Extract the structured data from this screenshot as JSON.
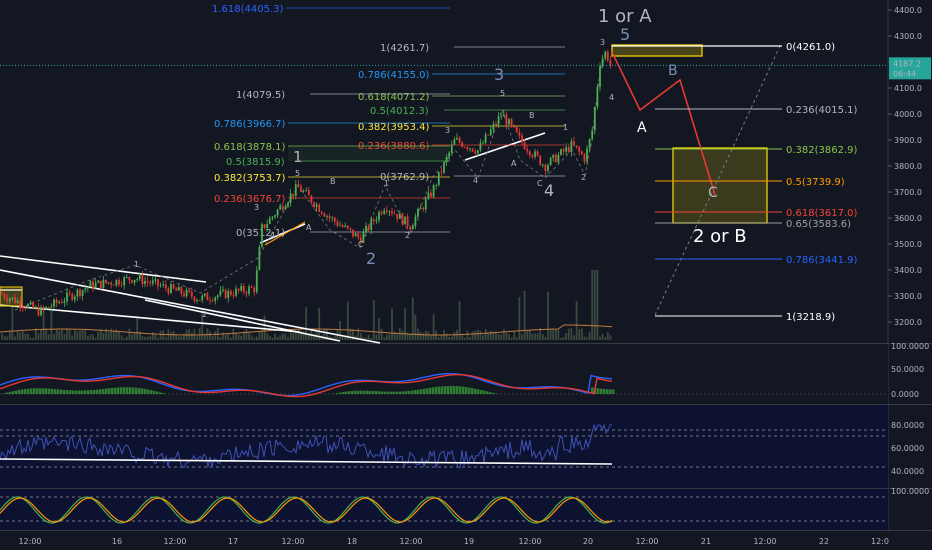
{
  "chart_data": {
    "type": "candlestick",
    "price_axis": {
      "ticks": [
        "4400.0",
        "4300.0",
        "4200.0",
        "4100.0",
        "4000.0",
        "3900.0",
        "3800.0",
        "3700.0",
        "3600.0",
        "3500.0",
        "3400.0",
        "3300.0",
        "3200.0"
      ],
      "current_price": "4187.2",
      "countdown": "06:44"
    },
    "time_axis": {
      "ticks": [
        "12:00",
        "16",
        "12:00",
        "17",
        "12:00",
        "18",
        "12:00",
        "19",
        "12:00",
        "20",
        "12:00",
        "21",
        "12:00",
        "22",
        "12:0"
      ]
    },
    "fib_levels_left": [
      {
        "label": "1.618(4405.3)",
        "color": "#2962ff"
      },
      {
        "label": "1(4261.7)",
        "color": "#b2b5be"
      },
      {
        "label": "0.786(4155.0)",
        "color": "#2196f3"
      },
      {
        "label": "0.618(4071.2)",
        "color": "#8bc34a"
      },
      {
        "label": "0.5(4012.3)",
        "color": "#4caf50"
      },
      {
        "label": "0.382(3953.4)",
        "color": "#ffeb3b"
      },
      {
        "label": "0.236(3880.6)",
        "color": "#f44336"
      },
      {
        "label": "0(3762.9)",
        "color": "#b2b5be"
      },
      {
        "label": "1(4079.5)",
        "color": "#b2b5be"
      },
      {
        "label": "0.786(3966.7)",
        "color": "#2196f3"
      },
      {
        "label": "0.618(3878.1)",
        "color": "#8bc34a"
      },
      {
        "label": "0.5(3815.9)",
        "color": "#4caf50"
      },
      {
        "label": "0.382(3753.7)",
        "color": "#ffeb3b"
      },
      {
        "label": "0.236(3676.7)",
        "color": "#f44336"
      },
      {
        "label": "0(3512.1)",
        "color": "#b2b5be"
      }
    ],
    "fib_levels_right": [
      {
        "label": "0(4261.0)",
        "color": "#ffffff"
      },
      {
        "label": "0.236(4015.1)",
        "color": "#b2b5be"
      },
      {
        "label": "0.382(3862.9)",
        "color": "#8bc34a"
      },
      {
        "label": "0.5(3739.9)",
        "color": "#ff9800"
      },
      {
        "label": "0.618(3617.0)",
        "color": "#f44336"
      },
      {
        "label": "0.65(3583.6)",
        "color": "#9e9e9e"
      },
      {
        "label": "0.786(3441.9)",
        "color": "#2962ff"
      },
      {
        "label": "1(3218.9)",
        "color": "#ffffff"
      }
    ],
    "wave_labels": {
      "w1": "1",
      "w2": "2",
      "w3": "3",
      "w4": "4",
      "w5": "5",
      "top": "1 or A",
      "mid": "2 or B",
      "a": "A",
      "b": "B",
      "c": "C",
      "sub_a": "A",
      "sub_b": "B",
      "sub_c": "C",
      "n1": "1",
      "n2": "2",
      "n3": "3",
      "n4": "4",
      "n5": "5"
    },
    "osc1_ticks": [
      "100.0000",
      "50.0000",
      "0.0000"
    ],
    "osc2_ticks": [
      "80.0000",
      "60.0000",
      "40.0000"
    ],
    "osc3_ticks": [
      "100.0000"
    ]
  }
}
